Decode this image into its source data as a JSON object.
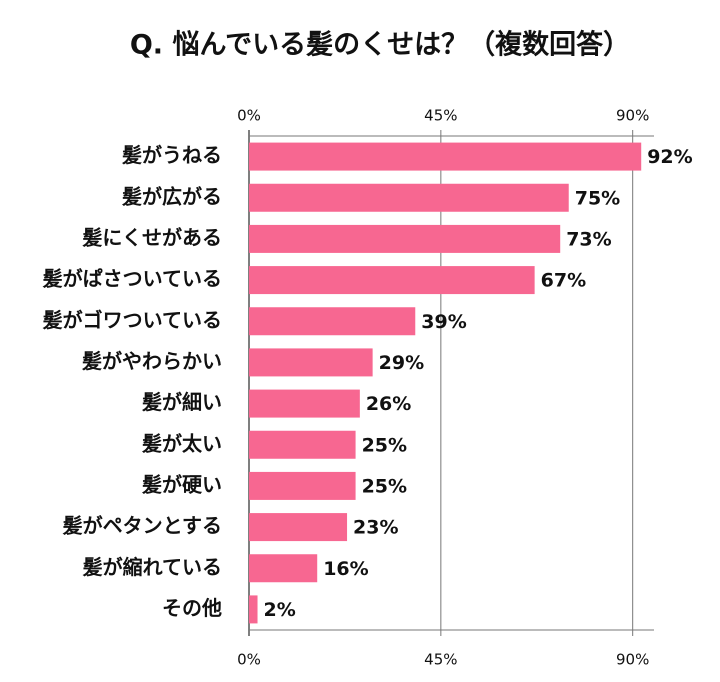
{
  "chart_data": {
    "type": "bar",
    "orientation": "horizontal",
    "title": "Q. 悩んでいる髪のくせは？（複数回答）",
    "categories": [
      "髪がうねる",
      "髪が広がる",
      "髪にくせがある",
      "髪がぱさついている",
      "髪がゴワついている",
      "髪がやわらかい",
      "髪が細い",
      "髪が太い",
      "髪が硬い",
      "髪がペタンとする",
      "髪が縮れている",
      "その他"
    ],
    "values": [
      92,
      75,
      73,
      67,
      39,
      29,
      26,
      25,
      25,
      23,
      16,
      2
    ],
    "value_labels": [
      "92%",
      "75%",
      "73%",
      "67%",
      "39%",
      "29%",
      "26%",
      "25%",
      "25%",
      "23%",
      "16%",
      "2%"
    ],
    "color": "#f76791",
    "xlim": [
      0,
      95
    ],
    "xticks": [
      {
        "value": 0,
        "label": "0%"
      },
      {
        "value": 45,
        "label": "45%"
      },
      {
        "value": 90,
        "label": "90%"
      }
    ],
    "grid": true
  }
}
